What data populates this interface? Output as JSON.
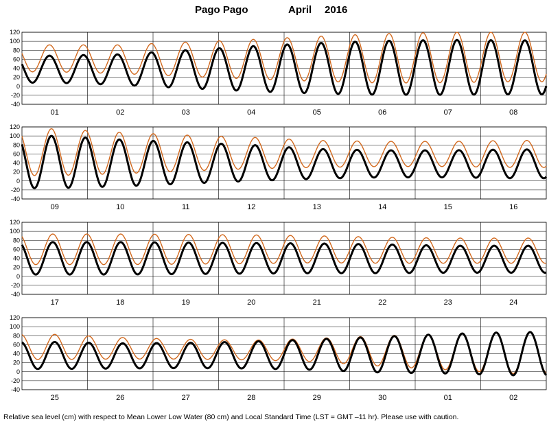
{
  "title": {
    "station": "Pago Pago",
    "month": "April",
    "year": "2016"
  },
  "caption": "Relative sea level (cm) with respect to Mean Lower Low Water (80 cm) and Local Standard Time (LST = GMT –11 hr). Please use with caution.",
  "colors": {
    "predicted": "#000000",
    "observed": "#d2691e",
    "grid": "#000000"
  },
  "chart_data": [
    {
      "type": "line",
      "panel": 1,
      "days": [
        "01",
        "02",
        "03",
        "04",
        "05",
        "06",
        "07",
        "08"
      ],
      "ylim": [
        -40,
        120
      ],
      "yticks": [
        -40,
        -20,
        0,
        20,
        40,
        60,
        80,
        100,
        120
      ],
      "series": [
        {
          "key": "predicted",
          "tides_per_day": 1.93,
          "phase_day": 0.42,
          "mean": [
            38,
            37,
            38,
            39,
            40,
            41,
            42,
            42
          ],
          "amplitude": [
            30,
            34,
            42,
            50,
            56,
            60,
            61,
            60
          ]
        },
        {
          "key": "observed",
          "tides_per_day": 1.93,
          "phase_day": 0.42,
          "mean": [
            62,
            60,
            60,
            60,
            61,
            62,
            64,
            65
          ],
          "amplitude": [
            30,
            32,
            38,
            44,
            50,
            55,
            56,
            55
          ]
        }
      ]
    },
    {
      "type": "line",
      "panel": 2,
      "days": [
        "09",
        "10",
        "11",
        "12",
        "13",
        "14",
        "15",
        "16"
      ],
      "ylim": [
        -40,
        120
      ],
      "yticks": [
        -40,
        -20,
        0,
        20,
        40,
        60,
        80,
        100,
        120
      ],
      "series": [
        {
          "key": "predicted",
          "tides_per_day": 1.93,
          "phase_day": 0.45,
          "mean": [
            42,
            40,
            40,
            40,
            38,
            38,
            38,
            38
          ],
          "amplitude": [
            58,
            52,
            46,
            40,
            33,
            30,
            30,
            32
          ]
        },
        {
          "key": "observed",
          "tides_per_day": 1.93,
          "phase_day": 0.45,
          "mean": [
            64,
            62,
            62,
            62,
            60,
            60,
            60,
            60
          ],
          "amplitude": [
            52,
            46,
            40,
            35,
            30,
            28,
            28,
            30
          ]
        }
      ]
    },
    {
      "type": "line",
      "panel": 3,
      "days": [
        "17",
        "18",
        "19",
        "20",
        "21",
        "22",
        "23",
        "24"
      ],
      "ylim": [
        -40,
        120
      ],
      "yticks": [
        -40,
        -20,
        0,
        20,
        40,
        60,
        80,
        100,
        120
      ],
      "series": [
        {
          "key": "predicted",
          "tides_per_day": 1.93,
          "phase_day": 0.47,
          "mean": [
            40,
            40,
            40,
            40,
            40,
            39,
            38,
            38
          ],
          "amplitude": [
            36,
            36,
            35,
            34,
            33,
            32,
            30,
            30
          ]
        },
        {
          "key": "observed",
          "tides_per_day": 1.93,
          "phase_day": 0.47,
          "mean": [
            60,
            60,
            60,
            60,
            60,
            58,
            57,
            57
          ],
          "amplitude": [
            34,
            34,
            33,
            32,
            30,
            29,
            28,
            28
          ]
        }
      ]
    },
    {
      "type": "line",
      "panel": 4,
      "days": [
        "25",
        "26",
        "27",
        "28",
        "29",
        "30",
        "01",
        "02"
      ],
      "ylim": [
        -40,
        120
      ],
      "yticks": [
        -40,
        -20,
        0,
        20,
        40,
        60,
        80,
        100,
        120
      ],
      "series": [
        {
          "key": "predicted",
          "tides_per_day": 1.93,
          "phase_day": 0.5,
          "mean": [
            36,
            35,
            36,
            37,
            38,
            38,
            40,
            40
          ],
          "amplitude": [
            30,
            28,
            28,
            30,
            34,
            40,
            44,
            48
          ]
        },
        {
          "key": "observed",
          "tides_per_day": 1.93,
          "phase_day": 0.5,
          "mean": [
            55,
            52,
            50,
            48,
            48,
            46,
            44,
            42
          ],
          "amplitude": [
            28,
            24,
            22,
            22,
            26,
            34,
            40,
            46
          ]
        }
      ]
    }
  ]
}
